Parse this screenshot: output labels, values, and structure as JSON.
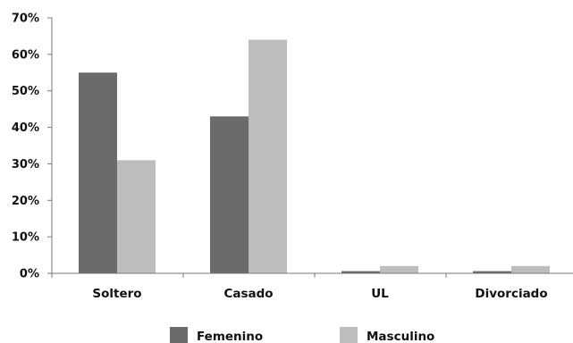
{
  "chart_data": {
    "type": "bar",
    "title": "",
    "xlabel": "",
    "ylabel": "",
    "categories": [
      "Soltero",
      "Casado",
      "UL",
      "Divorciado"
    ],
    "series": [
      {
        "name": "Femenino",
        "values": [
          55,
          43,
          0.6,
          0.6
        ],
        "color": "#6b6b6d"
      },
      {
        "name": "Masculino",
        "values": [
          31,
          64,
          2,
          2
        ],
        "color": "#bdbdc0"
      }
    ],
    "ylim": [
      0,
      70
    ],
    "yticks": [
      0,
      10,
      20,
      30,
      40,
      50,
      60,
      70
    ],
    "ytick_labels": [
      "0%",
      "10%",
      "20%",
      "30%",
      "40%",
      "50%",
      "60%",
      "70%"
    ],
    "grid": false,
    "legend_position": "bottom"
  }
}
